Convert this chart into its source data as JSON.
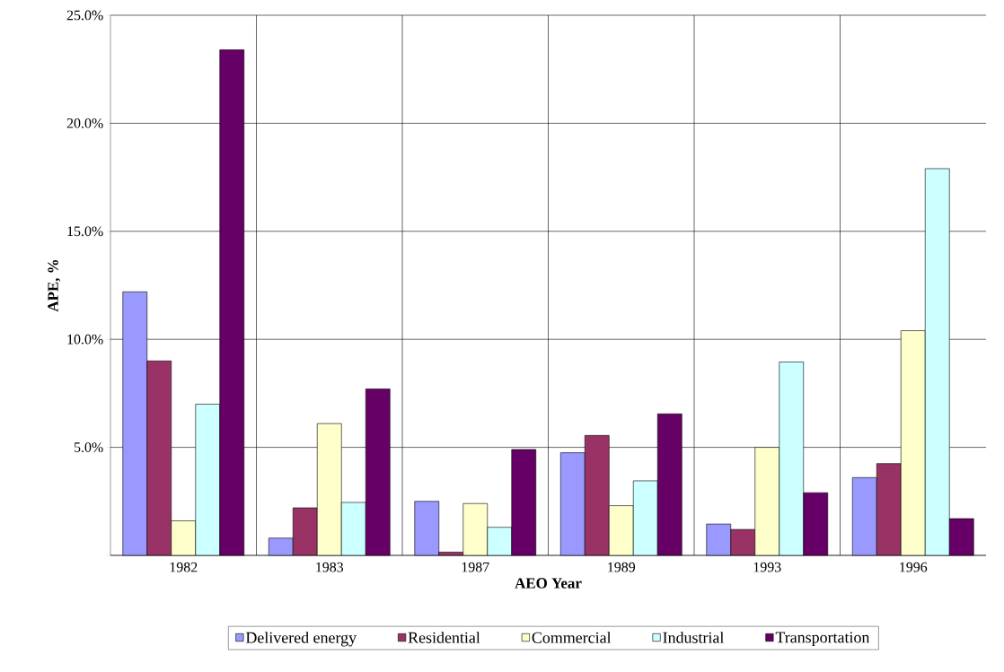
{
  "chart_data": {
    "type": "bar",
    "xlabel": "AEO Year",
    "ylabel": "APE, %",
    "categories": [
      "1982",
      "1983",
      "1987",
      "1989",
      "1993",
      "1996"
    ],
    "series": [
      {
        "name": "Delivered energy",
        "color": "#9999ff",
        "values": [
          12.2,
          0.8,
          2.5,
          4.75,
          1.45,
          3.6
        ]
      },
      {
        "name": "Residential",
        "color": "#993366",
        "values": [
          9.0,
          2.2,
          0.15,
          5.55,
          1.2,
          4.25
        ]
      },
      {
        "name": "Commercial",
        "color": "#ffffcc",
        "values": [
          1.6,
          6.1,
          2.4,
          2.3,
          5.0,
          10.4
        ]
      },
      {
        "name": "Industrial",
        "color": "#ccffff",
        "values": [
          7.0,
          2.45,
          1.3,
          3.45,
          8.95,
          17.9
        ]
      },
      {
        "name": "Transportation",
        "color": "#660066",
        "values": [
          23.4,
          7.7,
          4.9,
          6.55,
          2.9,
          1.7
        ]
      }
    ],
    "ylim": [
      0,
      25
    ],
    "yticks": [
      {
        "value": 0,
        "label": null
      },
      {
        "value": 5,
        "label": "5.0%"
      },
      {
        "value": 10,
        "label": "10.0%"
      },
      {
        "value": 15,
        "label": "15.0%"
      },
      {
        "value": 20,
        "label": "20.0%"
      },
      {
        "value": 25,
        "label": "25.0%"
      }
    ],
    "grid": true,
    "legend": "bottom"
  }
}
